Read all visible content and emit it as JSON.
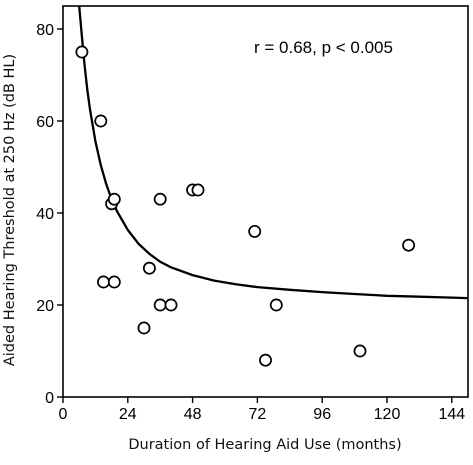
{
  "chart_data": {
    "type": "scatter",
    "xlabel": "Duration of Hearing Aid Use (months)",
    "ylabel": "Aided Hearing Threshold at 250 Hz (dB HL)",
    "xlim": [
      0,
      150
    ],
    "ylim": [
      0,
      85
    ],
    "xticks": [
      "0",
      "24",
      "48",
      "72",
      "96",
      "120",
      "144"
    ],
    "yticks": [
      "0",
      "20",
      "40",
      "60",
      "80"
    ],
    "annotation": "r = 0.68, p < 0.005",
    "grid": false,
    "points": [
      {
        "x": 7,
        "y": 75
      },
      {
        "x": 14,
        "y": 60
      },
      {
        "x": 15,
        "y": 25
      },
      {
        "x": 18,
        "y": 42
      },
      {
        "x": 19,
        "y": 43
      },
      {
        "x": 19,
        "y": 25
      },
      {
        "x": 30,
        "y": 15
      },
      {
        "x": 32,
        "y": 28
      },
      {
        "x": 36,
        "y": 43
      },
      {
        "x": 36,
        "y": 20
      },
      {
        "x": 40,
        "y": 20
      },
      {
        "x": 48,
        "y": 45
      },
      {
        "x": 50,
        "y": 45
      },
      {
        "x": 71,
        "y": 36
      },
      {
        "x": 75,
        "y": 8
      },
      {
        "x": 79,
        "y": 20
      },
      {
        "x": 110,
        "y": 10
      },
      {
        "x": 128,
        "y": 33
      }
    ],
    "fit_curve": [
      {
        "x": 6,
        "y": 85
      },
      {
        "x": 7,
        "y": 78.4
      },
      {
        "x": 8,
        "y": 72.1
      },
      {
        "x": 9,
        "y": 66.8
      },
      {
        "x": 10,
        "y": 62.5
      },
      {
        "x": 12,
        "y": 55.6
      },
      {
        "x": 14,
        "y": 50.4
      },
      {
        "x": 16,
        "y": 46.3
      },
      {
        "x": 18,
        "y": 43.0
      },
      {
        "x": 20,
        "y": 40.4
      },
      {
        "x": 24,
        "y": 36.3
      },
      {
        "x": 28,
        "y": 33.3
      },
      {
        "x": 32,
        "y": 31.1
      },
      {
        "x": 36,
        "y": 29.4
      },
      {
        "x": 40,
        "y": 28.2
      },
      {
        "x": 48,
        "y": 26.5
      },
      {
        "x": 56,
        "y": 25.3
      },
      {
        "x": 64,
        "y": 24.5
      },
      {
        "x": 72,
        "y": 23.9
      },
      {
        "x": 84,
        "y": 23.3
      },
      {
        "x": 96,
        "y": 22.8
      },
      {
        "x": 108,
        "y": 22.4
      },
      {
        "x": 120,
        "y": 22.0
      },
      {
        "x": 132,
        "y": 21.8
      },
      {
        "x": 144,
        "y": 21.6
      },
      {
        "x": 150,
        "y": 21.5
      }
    ]
  }
}
